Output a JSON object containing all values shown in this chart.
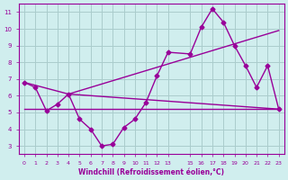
{
  "xlabel": "Windchill (Refroidissement éolien,°C)",
  "bg_color": "#d0eeee",
  "line_color": "#990099",
  "grid_color": "#aacccc",
  "xlim": [
    -0.5,
    23.5
  ],
  "ylim": [
    2.5,
    11.5
  ],
  "xticks": [
    0,
    1,
    2,
    3,
    4,
    5,
    6,
    7,
    8,
    9,
    10,
    11,
    12,
    13,
    15,
    16,
    17,
    18,
    19,
    20,
    21,
    22,
    23
  ],
  "yticks": [
    3,
    4,
    5,
    6,
    7,
    8,
    9,
    10,
    11
  ],
  "line1_x": [
    0,
    1,
    2,
    3,
    4,
    5,
    6,
    7,
    8,
    9,
    10,
    11,
    12,
    13,
    15,
    16,
    17,
    18,
    19,
    20,
    21,
    22,
    23
  ],
  "line1_y": [
    6.8,
    6.5,
    5.1,
    5.5,
    6.1,
    4.6,
    4.0,
    3.0,
    3.1,
    4.1,
    4.6,
    5.6,
    7.2,
    8.6,
    8.5,
    10.1,
    11.2,
    10.4,
    9.0,
    7.8,
    6.5,
    7.8,
    5.2
  ],
  "line2_x": [
    0,
    4,
    23
  ],
  "line2_y": [
    6.8,
    6.1,
    5.2
  ],
  "line3_x": [
    4,
    23
  ],
  "line3_y": [
    6.1,
    9.9
  ],
  "line4_x": [
    0,
    23
  ],
  "line4_y": [
    5.2,
    5.2
  ]
}
